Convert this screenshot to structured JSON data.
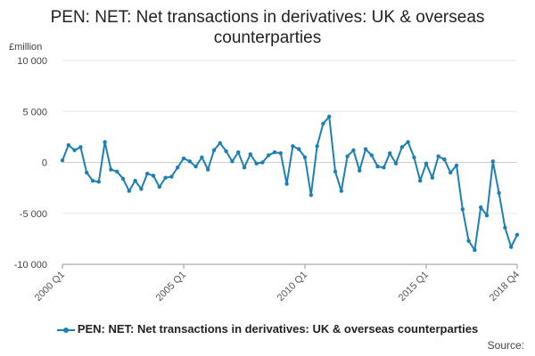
{
  "chart_data": {
    "type": "line",
    "title": "PEN: NET: Net transactions in derivatives: UK & overseas counterparties",
    "title_lines": [
      "PEN: NET: Net transactions in derivatives: UK & overseas",
      "counterparties"
    ],
    "ylabel": "£million",
    "ylim": [
      -10000,
      10000
    ],
    "yticks": [
      10000,
      5000,
      0,
      -5000,
      -10000
    ],
    "ytick_labels": [
      "10 000",
      "5 000",
      "0",
      "-5 000",
      "-10 000"
    ],
    "xtick_labels": [
      {
        "label": "2000 Q1",
        "index": 0
      },
      {
        "label": "2005 Q1",
        "index": 20
      },
      {
        "label": "2010 Q1",
        "index": 40
      },
      {
        "label": "2015 Q1",
        "index": 60
      },
      {
        "label": "2018 Q4",
        "index": 75
      }
    ],
    "grid": true,
    "legend_position": "bottom",
    "color": "#1d7fb4",
    "series": [
      {
        "name": "PEN: NET: Net transactions in derivatives: UK & overseas counterparties",
        "values": [
          200,
          1700,
          1200,
          1500,
          -1000,
          -1800,
          -1900,
          2000,
          -700,
          -900,
          -1600,
          -2800,
          -1800,
          -2600,
          -1100,
          -1300,
          -2400,
          -1500,
          -1400,
          -500,
          400,
          100,
          -400,
          500,
          -700,
          1200,
          1900,
          1100,
          100,
          1000,
          -500,
          800,
          -100,
          0,
          700,
          1000,
          900,
          -2100,
          1600,
          1300,
          500,
          -3200,
          1600,
          3800,
          4500,
          -900,
          -2800,
          600,
          1200,
          -800,
          1300,
          700,
          -400,
          -500,
          900,
          -100,
          1500,
          2000,
          500,
          -1800,
          -100,
          -1500,
          600,
          300,
          -1000,
          -300,
          -4600,
          -7700,
          -8600,
          -4400,
          -5200,
          100,
          -3000,
          -6400,
          -8300,
          -7100
        ]
      }
    ],
    "source_label": "Source:"
  }
}
